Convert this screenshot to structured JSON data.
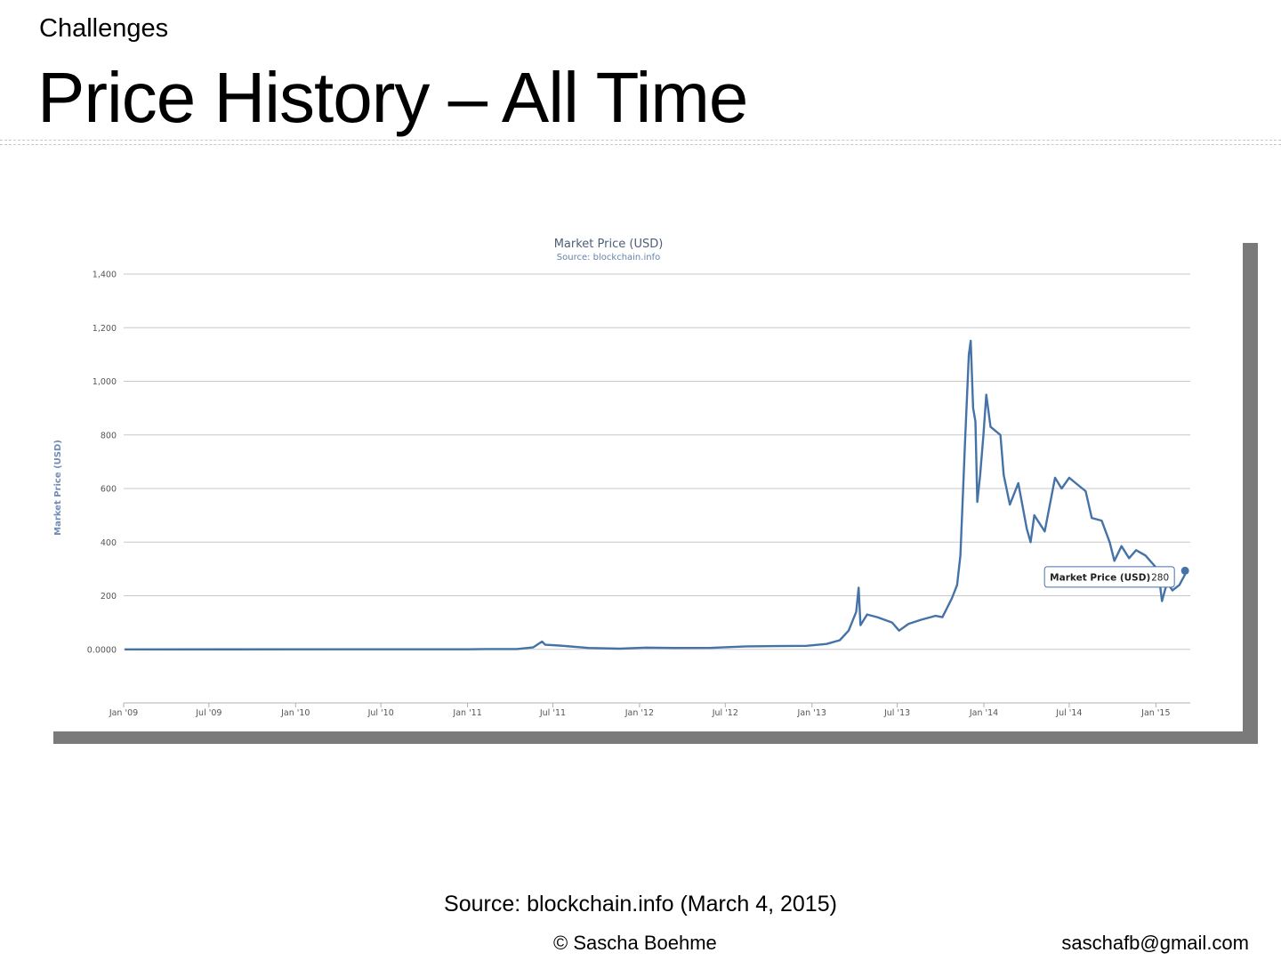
{
  "slide": {
    "section_label": "Challenges",
    "title": "Price History – All Time",
    "source_note": "Source: blockchain.info (March 4, 2015)",
    "footer_copyright": "© Sascha Boehme",
    "footer_email": "saschafb@gmail.com"
  },
  "chart_data": {
    "type": "line",
    "title": "Market Price (USD)",
    "subtitle": "Source: blockchain.info",
    "ylabel": "Market Price (USD)",
    "xlabel": "",
    "ylim": [
      -200,
      1400
    ],
    "y_ticks": [
      0,
      200,
      400,
      600,
      800,
      1000,
      1200,
      1400
    ],
    "y_tick_labels": [
      "0.0000",
      "200",
      "400",
      "600",
      "800",
      "1,000",
      "1,200",
      "1,400"
    ],
    "x_range": [
      "2009-01-01",
      "2015-03-15"
    ],
    "x_ticks": [
      "2009-01-01",
      "2009-07-01",
      "2010-01-01",
      "2010-07-01",
      "2011-01-01",
      "2011-07-01",
      "2012-01-01",
      "2012-07-01",
      "2013-01-01",
      "2013-07-01",
      "2014-01-01",
      "2014-07-01",
      "2015-01-01"
    ],
    "x_tick_labels": [
      "Jan '09",
      "Jul '09",
      "Jan '10",
      "Jul '10",
      "Jan '11",
      "Jul '11",
      "Jan '12",
      "Jul '12",
      "Jan '13",
      "Jul '13",
      "Jan '14",
      "Jul '14",
      "Jan '15"
    ],
    "grid": true,
    "color": "#4572a7",
    "series": [
      {
        "name": "Market Price (USD)",
        "points": [
          [
            "2009-01-03",
            0
          ],
          [
            "2010-07-17",
            0.05
          ],
          [
            "2010-12-31",
            0.3
          ],
          [
            "2011-02-10",
            1
          ],
          [
            "2011-04-15",
            1
          ],
          [
            "2011-05-20",
            7
          ],
          [
            "2011-06-08",
            29
          ],
          [
            "2011-06-15",
            17
          ],
          [
            "2011-07-15",
            14
          ],
          [
            "2011-09-15",
            5
          ],
          [
            "2011-11-20",
            2.5
          ],
          [
            "2012-01-15",
            6.5
          ],
          [
            "2012-03-15",
            5
          ],
          [
            "2012-06-01",
            5.5
          ],
          [
            "2012-08-15",
            11
          ],
          [
            "2012-10-15",
            12
          ],
          [
            "2012-12-20",
            13
          ],
          [
            "2013-02-01",
            20
          ],
          [
            "2013-03-01",
            34
          ],
          [
            "2013-03-20",
            70
          ],
          [
            "2013-04-05",
            140
          ],
          [
            "2013-04-10",
            230
          ],
          [
            "2013-04-14",
            90
          ],
          [
            "2013-04-28",
            130
          ],
          [
            "2013-05-20",
            120
          ],
          [
            "2013-06-20",
            100
          ],
          [
            "2013-07-05",
            70
          ],
          [
            "2013-07-25",
            95
          ],
          [
            "2013-08-20",
            110
          ],
          [
            "2013-09-20",
            125
          ],
          [
            "2013-10-05",
            120
          ],
          [
            "2013-10-25",
            190
          ],
          [
            "2013-11-05",
            240
          ],
          [
            "2013-11-12",
            350
          ],
          [
            "2013-11-18",
            600
          ],
          [
            "2013-11-22",
            780
          ],
          [
            "2013-11-30",
            1100
          ],
          [
            "2013-12-04",
            1151
          ],
          [
            "2013-12-09",
            900
          ],
          [
            "2013-12-14",
            850
          ],
          [
            "2013-12-18",
            550
          ],
          [
            "2013-12-24",
            650
          ],
          [
            "2013-12-31",
            800
          ],
          [
            "2014-01-06",
            950
          ],
          [
            "2014-01-15",
            830
          ],
          [
            "2014-02-05",
            800
          ],
          [
            "2014-02-12",
            650
          ],
          [
            "2014-02-25",
            540
          ],
          [
            "2014-03-15",
            620
          ],
          [
            "2014-04-02",
            450
          ],
          [
            "2014-04-10",
            400
          ],
          [
            "2014-04-18",
            500
          ],
          [
            "2014-05-10",
            440
          ],
          [
            "2014-06-01",
            640
          ],
          [
            "2014-06-15",
            600
          ],
          [
            "2014-07-01",
            640
          ],
          [
            "2014-07-15",
            620
          ],
          [
            "2014-08-05",
            590
          ],
          [
            "2014-08-18",
            490
          ],
          [
            "2014-09-08",
            480
          ],
          [
            "2014-09-25",
            400
          ],
          [
            "2014-10-05",
            330
          ],
          [
            "2014-10-20",
            385
          ],
          [
            "2014-11-05",
            340
          ],
          [
            "2014-11-20",
            370
          ],
          [
            "2014-12-10",
            350
          ],
          [
            "2014-12-30",
            310
          ],
          [
            "2015-01-07",
            280
          ],
          [
            "2015-01-14",
            180
          ],
          [
            "2015-01-25",
            250
          ],
          [
            "2015-02-05",
            220
          ],
          [
            "2015-02-20",
            240
          ],
          [
            "2015-03-04",
            280
          ]
        ]
      }
    ],
    "tooltip": {
      "label": "Market Price (USD)",
      "value": "280"
    }
  }
}
